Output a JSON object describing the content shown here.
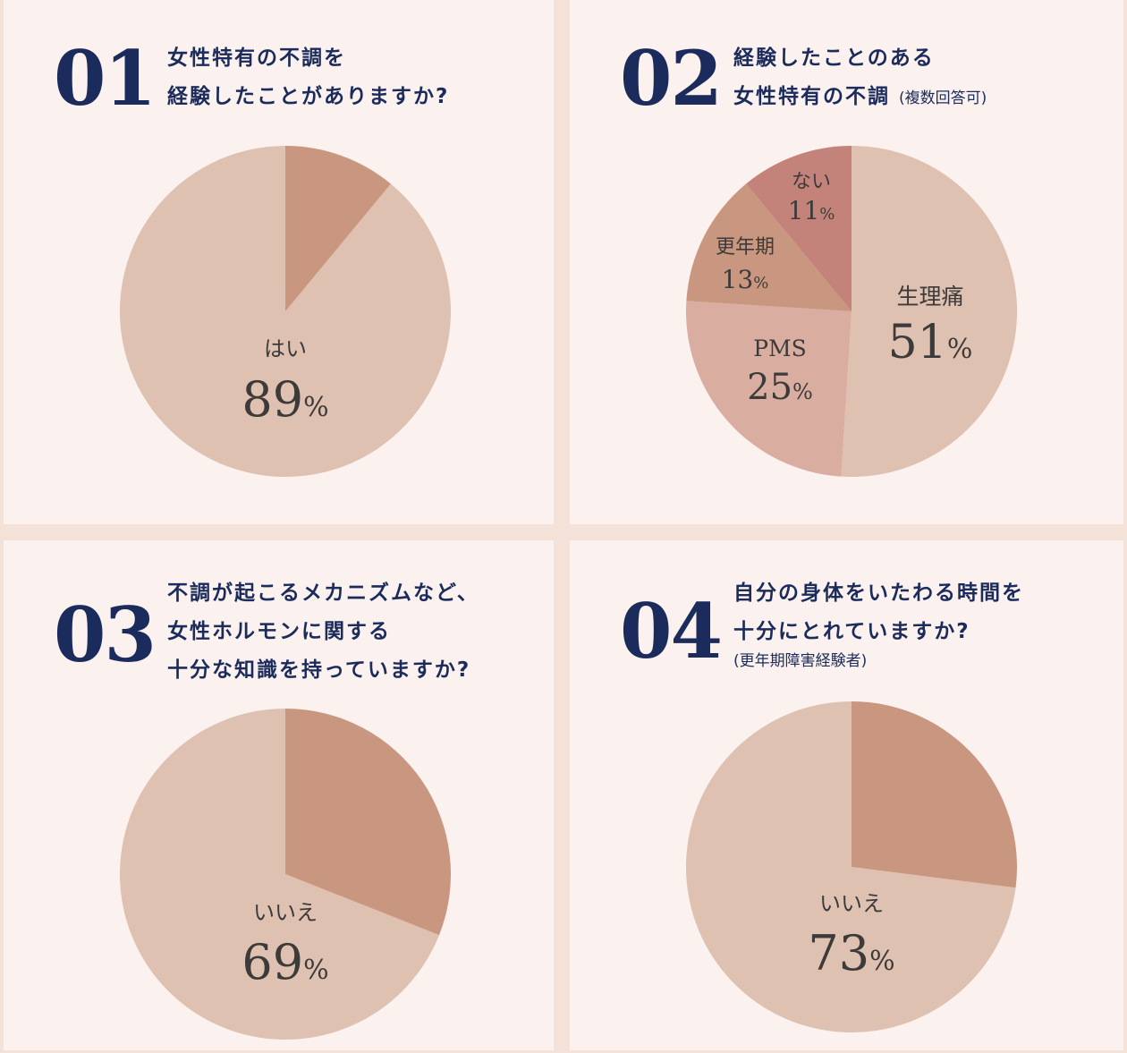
{
  "colors": {
    "light": "#dfc1b1",
    "medium": "#c9977f",
    "pms": "#d9ada0",
    "none": "#c4837a"
  },
  "panels": [
    {
      "number": "01",
      "question_lines": [
        "女性特有の不調を",
        "経験したことがありますか?"
      ]
    },
    {
      "number": "02",
      "question_lines": [
        "経験したことのある",
        "女性特有の不調"
      ],
      "question_suffix": "(複数回答可)"
    },
    {
      "number": "03",
      "question_lines": [
        "不調が起こるメカニズムなど、",
        "女性ホルモンに関する",
        "十分な知識を持っていますか?"
      ]
    },
    {
      "number": "04",
      "question_lines": [
        "自分の身体をいたわる時間を",
        "十分にとれていますか?"
      ],
      "question_note": "(更年期障害経験者)"
    }
  ],
  "chart_data": [
    {
      "type": "pie",
      "slices": [
        {
          "label": "はい",
          "value": 89,
          "value_text": "89",
          "unit": "%",
          "labeled": true
        },
        {
          "label": "",
          "value": 11,
          "labeled": false
        }
      ]
    },
    {
      "type": "pie",
      "slices": [
        {
          "label": "生理痛",
          "value": 51,
          "value_text": "51",
          "unit": "%",
          "labeled": true
        },
        {
          "label": "PMS",
          "value": 25,
          "value_text": "25",
          "unit": "%",
          "labeled": true
        },
        {
          "label": "更年期",
          "value": 13,
          "value_text": "13",
          "unit": "%",
          "labeled": true
        },
        {
          "label": "ない",
          "value": 11,
          "value_text": "11",
          "unit": "%",
          "labeled": true
        }
      ]
    },
    {
      "type": "pie",
      "slices": [
        {
          "label": "いいえ",
          "value": 69,
          "value_text": "69",
          "unit": "%",
          "labeled": true
        },
        {
          "label": "",
          "value": 31,
          "labeled": false
        }
      ]
    },
    {
      "type": "pie",
      "slices": [
        {
          "label": "いいえ",
          "value": 73,
          "value_text": "73",
          "unit": "%",
          "labeled": true
        },
        {
          "label": "",
          "value": 27,
          "labeled": false
        }
      ]
    }
  ]
}
